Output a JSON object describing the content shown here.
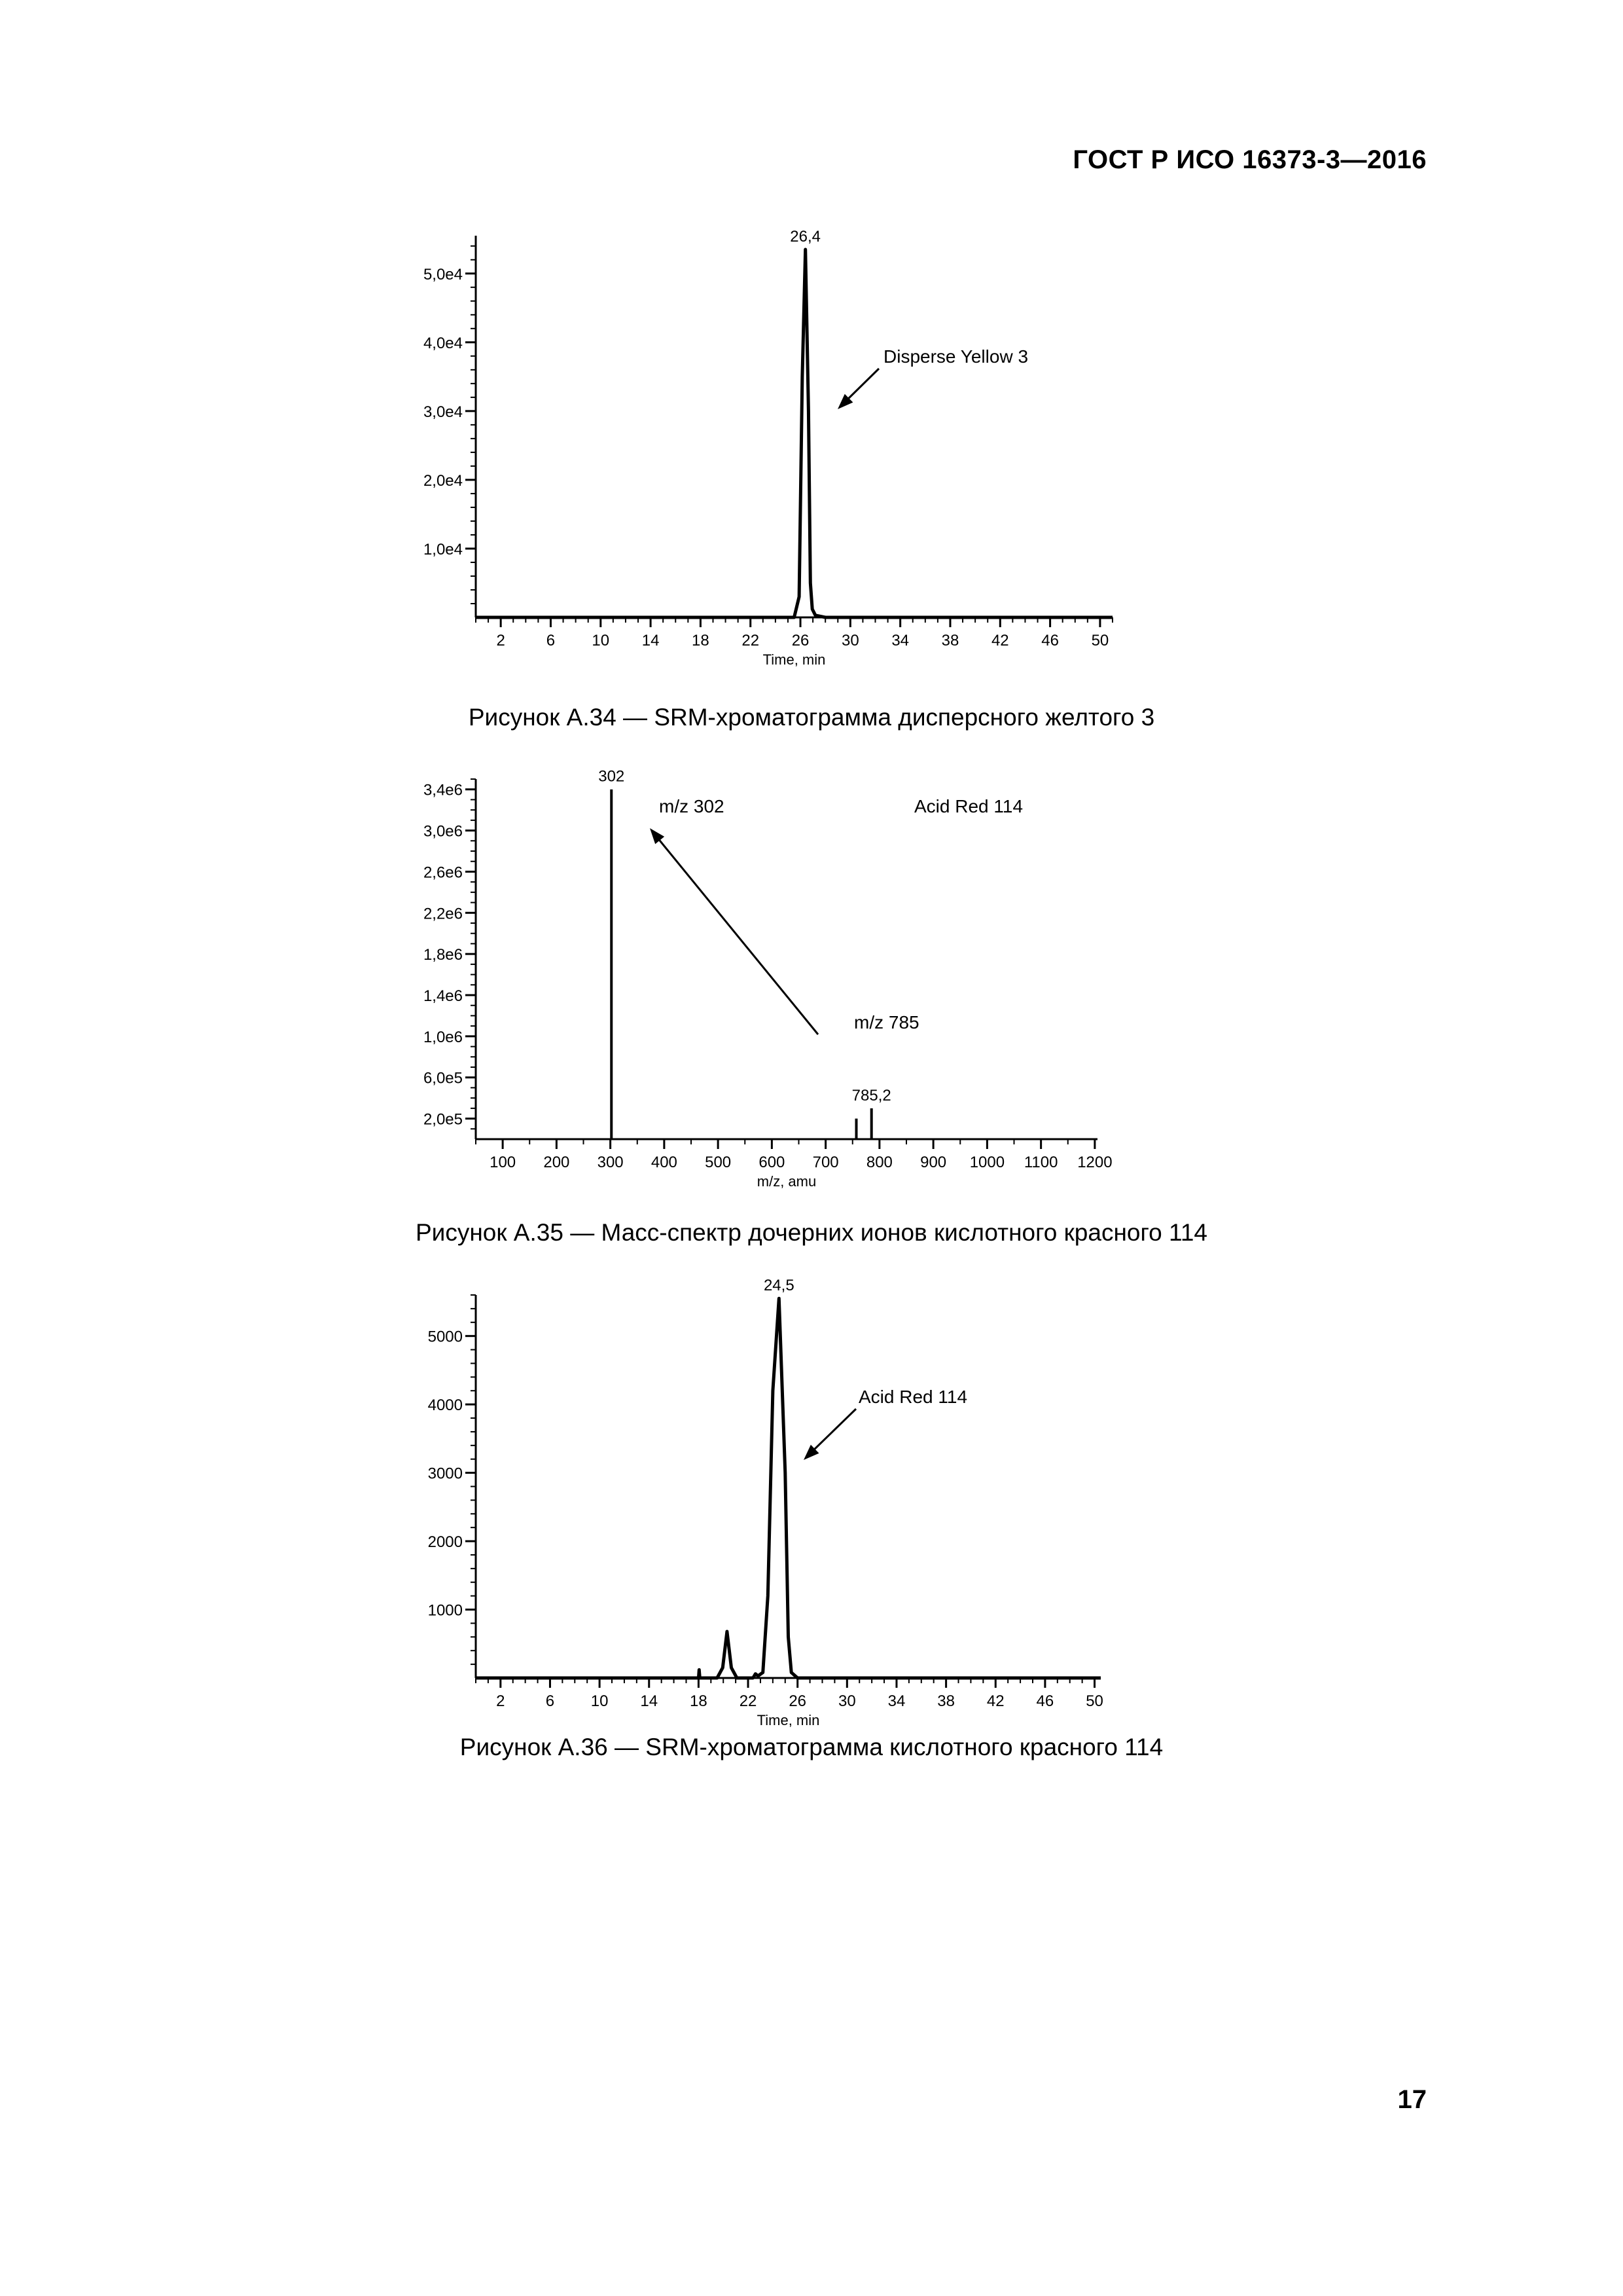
{
  "header": {
    "doc_title": "ГОСТ Р ИСО 16373-3—2016"
  },
  "page_number": "17",
  "chart_data": [
    {
      "type": "line",
      "y_tick_labels": [
        "1,0e4",
        "2,0e4",
        "3,0e4",
        "4,0e4",
        "5,0e4"
      ],
      "y_tick_values": [
        10000,
        20000,
        30000,
        40000,
        50000
      ],
      "x_tick_labels": [
        "2",
        "6",
        "10",
        "14",
        "18",
        "22",
        "26",
        "30",
        "34",
        "38",
        "42",
        "46",
        "50"
      ],
      "x_tick_values": [
        2,
        6,
        10,
        14,
        18,
        22,
        26,
        30,
        34,
        38,
        42,
        46,
        50
      ],
      "xlabel": "Time, min",
      "xlim": [
        0,
        51
      ],
      "ylim": [
        0,
        55500
      ],
      "peak_label": "26,4",
      "annotation": "Disperse Yellow 3",
      "x": [
        0,
        25.5,
        25.9,
        26.15,
        26.4,
        26.65,
        26.8,
        26.95,
        27.2,
        28,
        51
      ],
      "y": [
        0,
        0,
        3000,
        35000,
        53500,
        30000,
        5000,
        1200,
        300,
        0,
        0
      ]
    },
    {
      "type": "bar",
      "y_tick_labels": [
        "2,0e5",
        "6,0e5",
        "1,0e6",
        "1,4e6",
        "1,8e6",
        "2,2e6",
        "2,6e6",
        "3,0e6",
        "3,4e6"
      ],
      "y_tick_values": [
        200000,
        600000,
        1000000,
        1400000,
        1800000,
        2200000,
        2600000,
        3000000,
        3400000
      ],
      "x_tick_labels": [
        "100",
        "200",
        "300",
        "400",
        "500",
        "600",
        "700",
        "800",
        "900",
        "1000",
        "1100",
        "1200"
      ],
      "x_tick_values": [
        100,
        200,
        300,
        400,
        500,
        600,
        700,
        800,
        900,
        1000,
        1100,
        1200
      ],
      "xlabel": "m/z, amu",
      "xlim": [
        50,
        1205
      ],
      "ylim": [
        0,
        3500000
      ],
      "peaks": [
        {
          "mz": 302,
          "intensity": 3400000,
          "label": "302"
        },
        {
          "mz": 757,
          "intensity": 200000,
          "label": ""
        },
        {
          "mz": 785.2,
          "intensity": 300000,
          "label": "785,2"
        }
      ],
      "annotations": [
        "m/z 302",
        "Acid Red 114",
        "m/z 785"
      ]
    },
    {
      "type": "line",
      "y_tick_labels": [
        "1000",
        "2000",
        "3000",
        "4000",
        "5000"
      ],
      "y_tick_values": [
        1000,
        2000,
        3000,
        4000,
        5000
      ],
      "x_tick_labels": [
        "2",
        "6",
        "10",
        "14",
        "18",
        "22",
        "26",
        "30",
        "34",
        "38",
        "42",
        "46",
        "50"
      ],
      "x_tick_values": [
        2,
        6,
        10,
        14,
        18,
        22,
        26,
        30,
        34,
        38,
        42,
        46,
        50
      ],
      "xlabel": "Time, min",
      "xlim": [
        0,
        50.5
      ],
      "ylim": [
        0,
        5600
      ],
      "peak_label": "24,5",
      "annotation": "Acid Red 114",
      "x": [
        0,
        18,
        18.05,
        18.1,
        19.5,
        19.95,
        20.3,
        20.65,
        21.1,
        22.4,
        22.6,
        22.8,
        23.2,
        23.6,
        24.0,
        24.5,
        25.0,
        25.25,
        25.5,
        26,
        50.5
      ],
      "y": [
        0,
        0,
        120,
        0,
        0,
        150,
        680,
        150,
        0,
        0,
        60,
        30,
        80,
        1200,
        4200,
        5550,
        3000,
        600,
        80,
        0,
        0
      ]
    }
  ],
  "captions": [
    "Рисунок А.34 — SRM-хроматограмма дисперсного желтого 3",
    "Рисунок А.35 — Масс-спектр дочерних ионов кислотного красного 114",
    "Рисунок А.36 — SRM-хроматограмма кислотного красного 114"
  ]
}
